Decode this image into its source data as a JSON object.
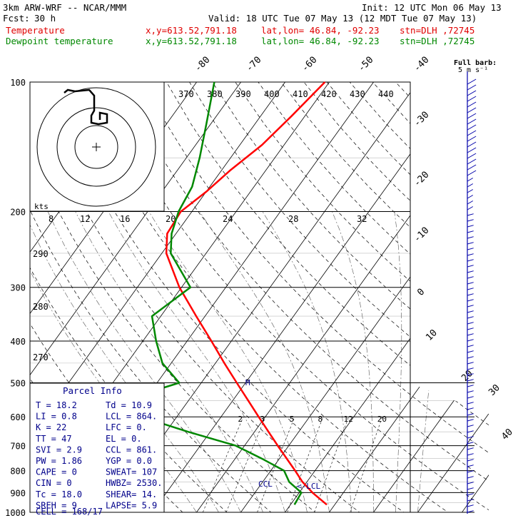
{
  "header": {
    "model": "3km ARW-WRF -- NCAR/MMM",
    "init": "Init: 12 UTC Mon 06 May 13",
    "fcst_label": "Fcst:",
    "fcst_value": "30 h",
    "valid": "Valid: 18 UTC Tue 07 May 13 (12 MDT Tue 07 May 13)",
    "temp_line": {
      "label": "Temperature",
      "xy": "x,y=613.52,791.18",
      "latlon": "lat,lon= 46.84, -92.23",
      "stn": "stn=DLH ,72745"
    },
    "dew_line": {
      "label": "Dewpoint temperature",
      "xy": "x,y=613.52,791.18",
      "latlon": "lat,lon= 46.84, -92.23",
      "stn": "stn=DLH ,72745"
    }
  },
  "colors": {
    "temperature": "#ff0000",
    "dewpoint": "#008800",
    "barbs": "#0000aa",
    "text_blue": "#00008b"
  },
  "chart_data": {
    "type": "line",
    "title": "",
    "pressure_levels": [
      "100",
      "200",
      "300",
      "400",
      "500",
      "600",
      "700",
      "800",
      "900",
      "1000"
    ],
    "temperature_isotherm_labels": [
      "-80",
      "-70",
      "-60",
      "-50",
      "-40",
      "-30",
      "-20",
      "-10",
      "0",
      "10",
      "20",
      "30",
      "40"
    ],
    "theta_labels": [
      "370",
      "380",
      "390",
      "400",
      "410",
      "420",
      "430",
      "440"
    ],
    "theta_side_labels": [
      "290",
      "280",
      "270"
    ],
    "hodograph_speed_labels": [
      "8",
      "12",
      "16",
      "20",
      "24",
      "28",
      "32"
    ],
    "hodograph_unit": "kts",
    "mixing_ratio_labels": [
      "2",
      "3",
      "5",
      "8",
      "12",
      "20"
    ],
    "series": [
      {
        "name": "Temperature",
        "pressure_hpa": [
          960,
          900,
          850,
          800,
          700,
          600,
          550,
          500,
          450,
          400,
          350,
          300,
          250,
          225,
          200,
          180,
          160,
          140,
          120,
          100
        ],
        "temperature_c": [
          18.2,
          13,
          9,
          5.5,
          -2.5,
          -11.5,
          -16.5,
          -22,
          -28,
          -34.5,
          -42,
          -50.5,
          -59,
          -62,
          -62.5,
          -60,
          -58,
          -55,
          -53,
          -51
        ]
      },
      {
        "name": "Dewpoint temperature",
        "pressure_hpa": [
          960,
          900,
          850,
          800,
          750,
          700,
          650,
          600,
          550,
          500,
          450,
          400,
          350,
          300,
          250,
          225,
          200,
          175,
          150,
          125,
          100
        ],
        "dewpoint_c": [
          10.9,
          10.5,
          6,
          3,
          -4,
          -12,
          -25,
          -38,
          -45,
          -35,
          -42,
          -47,
          -52,
          -48,
          -58,
          -61,
          -63,
          -64,
          -67,
          -71,
          -76
        ]
      }
    ],
    "wind_barbs_present": true,
    "full_barb_label": "Full barb:",
    "full_barb_value": "5 m s⁻¹",
    "level_markers": {
      "ccl": "CCL",
      "lcl": "<-LCL",
      "m": "M"
    }
  },
  "parcel_info": {
    "title": "Parcel Info",
    "rows": [
      {
        "left": "T  =    18.2",
        "right": "Td =  10.9"
      },
      {
        "left": "LI =     0.8",
        "right": "LCL =  864."
      },
      {
        "left": "K  =      22",
        "right": "LFC =    0."
      },
      {
        "left": "TT =      47",
        "right": "EL  =    0."
      },
      {
        "left": "SVI =    2.9",
        "right": "CCL =  861."
      },
      {
        "left": "PW =    1.86",
        "right": "YGP =   0.0"
      },
      {
        "left": "CAPE =     0",
        "right": "SWEAT=  107"
      },
      {
        "left": "CIN =      0",
        "right": "HWBZ= 2530."
      },
      {
        "left": "Tc =    18.0",
        "right": "SHEAR=  14."
      },
      {
        "left": "SREH =     9",
        "right": "LAPSE=  5.9"
      }
    ],
    "cell": "CELL = 168/17"
  }
}
